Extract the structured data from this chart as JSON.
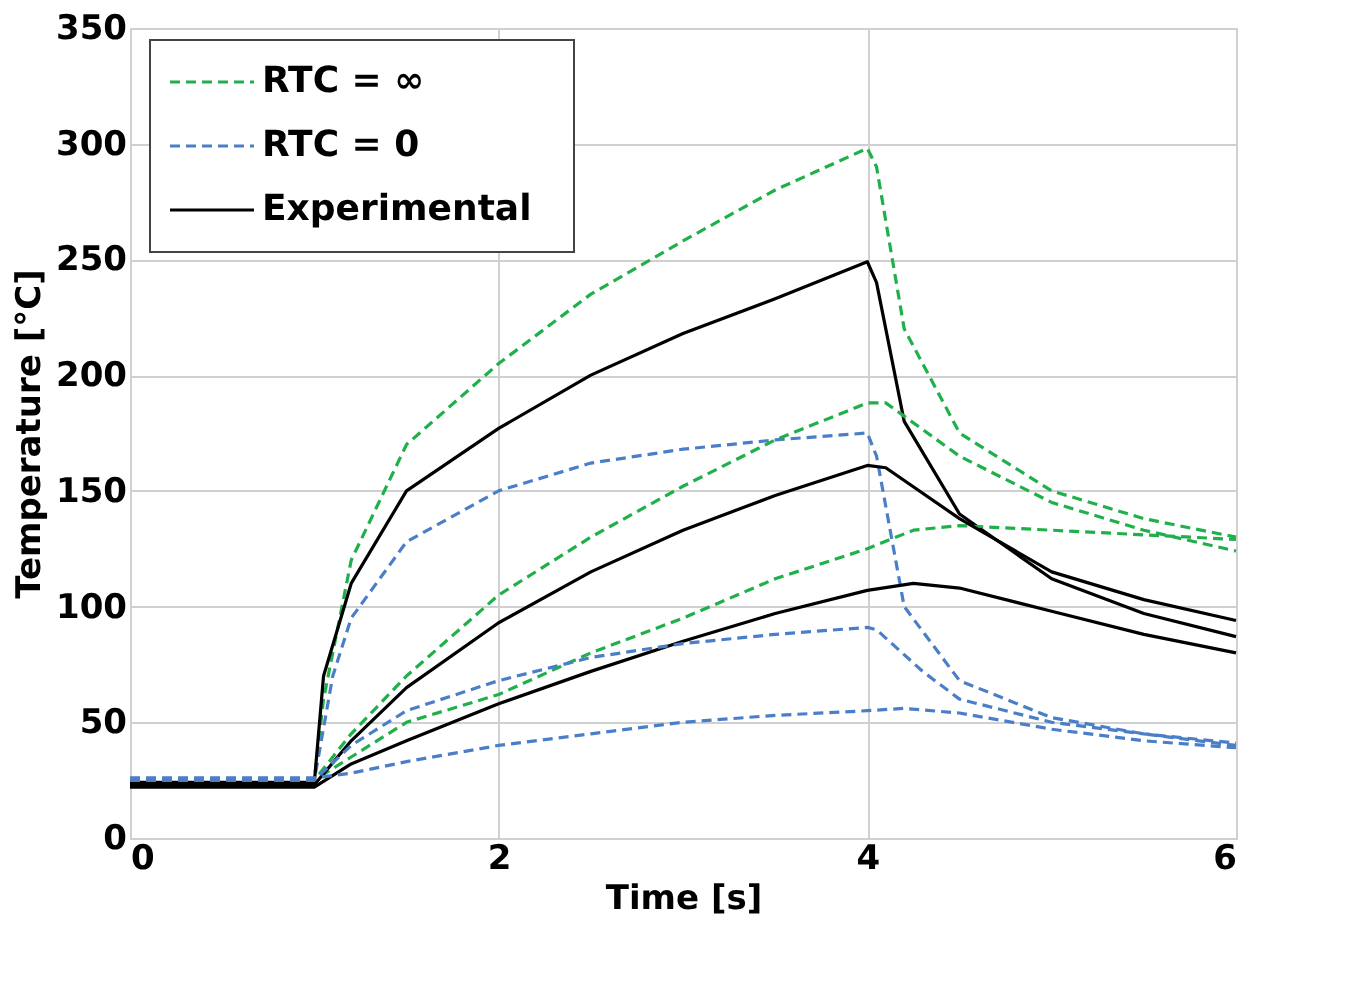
{
  "chart_data": {
    "type": "line",
    "xlabel": "Time [s]",
    "ylabel": "Temperature [°C]",
    "xlim": [
      0,
      6
    ],
    "ylim": [
      0,
      350
    ],
    "xticks": [
      0,
      2,
      4,
      6
    ],
    "yticks": [
      0,
      50,
      100,
      150,
      200,
      250,
      300,
      350
    ],
    "grid": true,
    "legend": "top left",
    "marker": "none",
    "series": [
      {
        "name": "RTC = ∞",
        "color": "#1fb04b",
        "line_style": "dashed",
        "x": [
          0,
          1,
          1.05,
          1.2,
          1.5,
          2,
          2.5,
          3,
          3.5,
          4,
          4.05,
          4.2,
          4.5,
          5,
          5.5,
          6
        ],
        "values": [
          25,
          25,
          60,
          120,
          170,
          205,
          235,
          258,
          280,
          298,
          290,
          220,
          175,
          150,
          138,
          130
        ]
      },
      {
        "name": "RTC = 0",
        "color": "#4a7fc8",
        "line_style": "dashed",
        "x": [
          0,
          1,
          1.1,
          1.2,
          1.5,
          2,
          2.5,
          3,
          3.5,
          4,
          4.05,
          4.2,
          4.5,
          5,
          5.5,
          6
        ],
        "values": [
          25,
          25,
          70,
          95,
          128,
          150,
          162,
          168,
          172,
          175,
          165,
          100,
          68,
          52,
          45,
          40
        ]
      },
      {
        "name": "Experimental",
        "color": "#000000",
        "line_style": "solid",
        "x": [
          0,
          1,
          1.05,
          1.2,
          1.5,
          2,
          2.5,
          3,
          3.5,
          4,
          4.05,
          4.2,
          4.5,
          5,
          5.5,
          6
        ],
        "values": [
          24,
          24,
          70,
          110,
          150,
          177,
          200,
          218,
          233,
          249,
          240,
          180,
          140,
          112,
          97,
          87
        ]
      },
      {
        "color": "#1fb04b",
        "line_style": "dashed",
        "x": [
          0,
          1,
          1.2,
          1.5,
          2,
          2.5,
          3,
          3.5,
          4,
          4.1,
          4.5,
          5,
          5.5,
          6
        ],
        "values": [
          25,
          25,
          45,
          70,
          105,
          130,
          152,
          172,
          188,
          188,
          165,
          145,
          133,
          124
        ]
      },
      {
        "color": "#1fb04b",
        "line_style": "dashed",
        "x": [
          0,
          1,
          1.2,
          1.5,
          2,
          2.5,
          3,
          3.5,
          4,
          4.25,
          4.5,
          5,
          5.5,
          6
        ],
        "values": [
          25,
          25,
          35,
          50,
          62,
          80,
          95,
          112,
          125,
          133,
          135,
          133,
          131,
          129
        ]
      },
      {
        "color": "#000000",
        "line_style": "solid",
        "x": [
          0,
          1,
          1.2,
          1.5,
          2,
          2.5,
          3,
          3.5,
          4,
          4.1,
          4.5,
          5,
          5.5,
          6
        ],
        "values": [
          23,
          23,
          42,
          65,
          93,
          115,
          133,
          148,
          161,
          160,
          138,
          115,
          103,
          94
        ]
      },
      {
        "color": "#000000",
        "line_style": "solid",
        "x": [
          0,
          1,
          1.2,
          1.5,
          2,
          2.5,
          3,
          3.5,
          4,
          4.25,
          4.5,
          5,
          5.5,
          6
        ],
        "values": [
          22,
          22,
          32,
          42,
          58,
          72,
          85,
          97,
          107,
          110,
          108,
          98,
          88,
          80
        ]
      },
      {
        "color": "#4a7fc8",
        "line_style": "dashed",
        "x": [
          0,
          1,
          1.2,
          1.5,
          2,
          2.5,
          3,
          3.5,
          4,
          4.05,
          4.3,
          4.5,
          5,
          5.5,
          6
        ],
        "values": [
          25,
          25,
          40,
          55,
          68,
          78,
          84,
          88,
          91,
          90,
          72,
          60,
          50,
          45,
          41
        ]
      },
      {
        "color": "#4a7fc8",
        "line_style": "dashed",
        "x": [
          0,
          1,
          1.2,
          1.5,
          2,
          2.5,
          3,
          3.5,
          4,
          4.2,
          4.5,
          5,
          5.5,
          6
        ],
        "values": [
          26,
          26,
          28,
          33,
          40,
          45,
          50,
          53,
          55,
          56,
          54,
          47,
          42,
          39
        ]
      }
    ]
  }
}
